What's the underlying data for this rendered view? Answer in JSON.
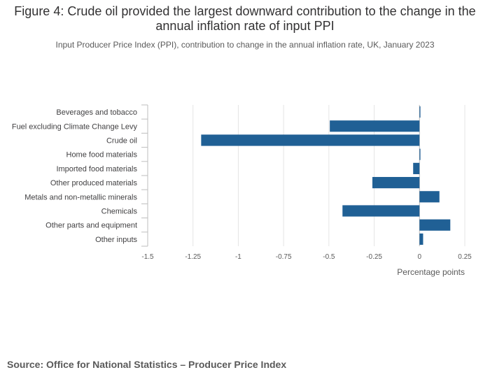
{
  "title": "Figure 4: Crude oil provided the largest downward contribution to the change in the annual inflation rate of input PPI",
  "subtitle": "Input Producer Price Index (PPI), contribution to change in the annual inflation rate, UK, January 2023",
  "source": "Source: Office for National Statistics – Producer Price Index",
  "colors": {
    "bar": "#206095",
    "grid": "#e4e4e4",
    "axis": "#bebebe",
    "text": "#414042"
  },
  "chart_data": {
    "type": "bar",
    "orientation": "horizontal",
    "categories": [
      "Beverages and tobacco",
      "Fuel excluding Climate Change Levy",
      "Crude oil",
      "Home food materials",
      "Imported food materials",
      "Other produced materials",
      "Metals and non-metallic minerals",
      "Chemicals",
      "Other parts and equipment",
      "Other inputs"
    ],
    "values": [
      0.005,
      -0.495,
      -1.205,
      0.005,
      -0.035,
      -0.26,
      0.11,
      -0.425,
      0.17,
      0.02
    ],
    "xlabel": "Percentage points",
    "ylabel": "",
    "xlim": [
      -1.5,
      0.25
    ],
    "xticks": [
      -1.5,
      -1.25,
      -1,
      -0.75,
      -0.5,
      -0.25,
      0,
      0.25
    ],
    "xtick_labels": [
      "-1.5",
      "-1.25",
      "-1",
      "-0.75",
      "-0.5",
      "-0.25",
      "0",
      "0.25"
    ],
    "grid": true
  }
}
